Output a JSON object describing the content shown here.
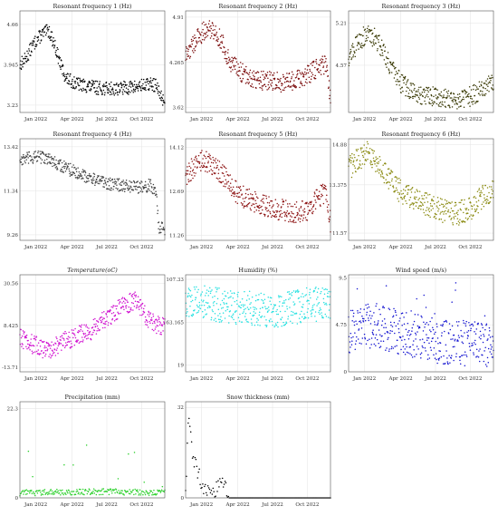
{
  "chart_data": [
    {
      "id": "rf1",
      "type": "scatter",
      "title": "Resonant frequency 1 (Hz)",
      "color": "#000000",
      "y_ticks": [
        "3.23",
        "3.945",
        "4.66"
      ],
      "ylim": [
        3.1,
        4.9
      ],
      "x_ticks": [
        "Jan 2022",
        "Apr 2022",
        "Jul 2022",
        "Oct 2022"
      ],
      "series": {
        "x": [
          0,
          0.04,
          0.08,
          0.12,
          0.16,
          0.2,
          0.24,
          0.28,
          0.32,
          0.4,
          0.5,
          0.6,
          0.7,
          0.8,
          0.9,
          0.94,
          0.97,
          1.0
        ],
        "y": [
          3.95,
          4.05,
          4.25,
          4.4,
          4.5,
          4.55,
          4.3,
          3.95,
          3.7,
          3.6,
          3.55,
          3.52,
          3.53,
          3.55,
          3.6,
          3.58,
          3.4,
          3.3
        ],
        "spread": 0.12
      }
    },
    {
      "id": "rf2",
      "type": "scatter",
      "title": "Resonant frequency 2 (Hz)",
      "color": "#7a0a0a",
      "y_ticks": [
        "3.62",
        "4.265",
        "4.91"
      ],
      "ylim": [
        3.55,
        5.0
      ],
      "x_ticks": [
        "Jan 2022",
        "Apr 2022",
        "Jul 2022",
        "Oct 2022"
      ],
      "series": {
        "x": [
          0,
          0.06,
          0.12,
          0.18,
          0.24,
          0.3,
          0.36,
          0.45,
          0.55,
          0.65,
          0.75,
          0.85,
          0.92,
          0.97,
          1.0
        ],
        "y": [
          4.35,
          4.55,
          4.7,
          4.75,
          4.6,
          4.3,
          4.15,
          4.05,
          4.0,
          3.98,
          4.0,
          4.1,
          4.2,
          4.25,
          3.75
        ],
        "spread": 0.14
      }
    },
    {
      "id": "rf3",
      "type": "scatter",
      "title": "Resonant frequency 3 (Hz)",
      "color": "#3a3a05",
      "y_ticks": [
        "4.57",
        "5.21"
      ],
      "ylim": [
        3.85,
        5.4
      ],
      "x_ticks": [
        "Jan 2022",
        "Apr 2022",
        "Jul 2022",
        "Oct 2022"
      ],
      "series": {
        "x": [
          0,
          0.06,
          0.12,
          0.18,
          0.24,
          0.3,
          0.36,
          0.45,
          0.55,
          0.65,
          0.75,
          0.85,
          0.92,
          1.0
        ],
        "y": [
          4.7,
          4.9,
          5.05,
          5.0,
          4.8,
          4.5,
          4.3,
          4.15,
          4.1,
          4.08,
          4.05,
          4.1,
          4.2,
          4.3
        ],
        "spread": 0.15
      }
    },
    {
      "id": "rf4",
      "type": "scatter",
      "title": "Resonant frequency 4 (Hz)",
      "color": "#444444",
      "y_ticks": [
        "9.26",
        "11.34",
        "13.42"
      ],
      "ylim": [
        9.0,
        13.8
      ],
      "x_ticks": [
        "Jan 2022",
        "Apr 2022",
        "Jul 2022",
        "Oct 2022"
      ],
      "series": {
        "x": [
          0,
          0.08,
          0.16,
          0.24,
          0.32,
          0.4,
          0.5,
          0.6,
          0.7,
          0.8,
          0.9,
          0.94,
          0.96,
          1.0
        ],
        "y": [
          12.8,
          12.9,
          12.95,
          12.7,
          12.4,
          12.2,
          11.9,
          11.7,
          11.6,
          11.5,
          11.6,
          11.2,
          9.6,
          9.5
        ],
        "spread": 0.3
      }
    },
    {
      "id": "rf5",
      "type": "scatter",
      "title": "Resonant frequency 5 (Hz)",
      "color": "#8b0f0f",
      "y_ticks": [
        "11.26",
        "12.69",
        "14.12"
      ],
      "ylim": [
        11.1,
        14.4
      ],
      "x_ticks": [
        "Jan 2022",
        "Apr 2022",
        "Jul 2022",
        "Oct 2022"
      ],
      "series": {
        "x": [
          0,
          0.06,
          0.12,
          0.2,
          0.28,
          0.36,
          0.45,
          0.55,
          0.65,
          0.75,
          0.85,
          0.92,
          0.97,
          1.0
        ],
        "y": [
          13.2,
          13.5,
          13.7,
          13.5,
          13.1,
          12.6,
          12.4,
          12.2,
          12.1,
          12.0,
          12.1,
          12.5,
          12.7,
          11.7
        ],
        "spread": 0.35
      }
    },
    {
      "id": "rf6",
      "type": "scatter",
      "title": "Resonant frequency 6 (Hz)",
      "color": "#8a8a10",
      "y_ticks": [
        "11.57",
        "13.375",
        "14.88"
      ],
      "ylim": [
        11.3,
        15.1
      ],
      "x_ticks": [
        "Jan 2022",
        "Apr 2022",
        "Jul 2022",
        "Oct 2022"
      ],
      "series": {
        "x": [
          0,
          0.06,
          0.12,
          0.2,
          0.28,
          0.36,
          0.45,
          0.55,
          0.65,
          0.75,
          0.85,
          0.92,
          1.0
        ],
        "y": [
          14.0,
          14.3,
          14.6,
          14.2,
          13.6,
          13.1,
          12.9,
          12.6,
          12.4,
          12.3,
          12.5,
          12.9,
          13.1
        ],
        "spread": 0.45
      }
    },
    {
      "id": "temp",
      "type": "scatter",
      "title": "Temperature(oC)",
      "color": "#d010d0",
      "y_ticks": [
        "-13.71",
        "8.425",
        "30.56"
      ],
      "ylim": [
        -16,
        35
      ],
      "x_ticks": [
        "Jan 2022",
        "Apr 2022",
        "Jul 2022",
        "Oct 2022"
      ],
      "series": {
        "x": [
          0,
          0.1,
          0.2,
          0.3,
          0.4,
          0.5,
          0.6,
          0.7,
          0.8,
          0.85,
          0.9,
          1.0
        ],
        "y": [
          2,
          -2,
          -5,
          0,
          3,
          6,
          12,
          18,
          22,
          16,
          10,
          8
        ],
        "spread": 5
      }
    },
    {
      "id": "hum",
      "type": "scatter",
      "title": "Humidity (%)",
      "color": "#22e0e0",
      "y_ticks": [
        "19",
        "63.165",
        "107.33"
      ],
      "ylim": [
        12,
        112
      ],
      "x_ticks": [
        "Jan 2022",
        "Apr 2022",
        "Jul 2022",
        "Oct 2022"
      ],
      "series": {
        "x": [
          0,
          0.2,
          0.4,
          0.6,
          0.8,
          1.0
        ],
        "y": [
          85,
          82,
          78,
          75,
          80,
          84
        ],
        "spread": 18
      }
    },
    {
      "id": "wind",
      "type": "scatter",
      "title": "Wind speed (m/s)",
      "color": "#1212d0",
      "y_ticks": [
        "0",
        "4.75",
        "9.5"
      ],
      "ylim": [
        0,
        9.8
      ],
      "x_ticks": [
        "Jan 2022",
        "Apr 2022",
        "Jul 2022",
        "Oct 2022"
      ],
      "series": {
        "x": [
          0,
          0.2,
          0.4,
          0.6,
          0.8,
          1.0
        ],
        "y": [
          3.5,
          4.0,
          3.2,
          2.5,
          2.2,
          2.0
        ],
        "spread": 2.3
      }
    },
    {
      "id": "prec",
      "type": "scatter",
      "title": "Precipitation (mm)",
      "color": "#2ad02a",
      "y_ticks": [
        "0",
        "22.3"
      ],
      "ylim": [
        0,
        24
      ],
      "x_ticks": [
        "Jan 2022",
        "Apr 2022",
        "Jul 2022",
        "Oct 2022"
      ],
      "series": {
        "x": [
          0,
          0.5,
          1.0
        ],
        "y": [
          0.5,
          0.8,
          0.6
        ],
        "spread": 1.5
      }
    },
    {
      "id": "snow",
      "type": "scatter",
      "title": "Snow thickness (mm)",
      "color": "#000000",
      "y_ticks": [
        "0",
        "32"
      ],
      "ylim": [
        0,
        34
      ],
      "x_ticks": [
        "Jan 2022",
        "Apr 2022",
        "Jul 2022",
        "Oct 2022"
      ],
      "series": {
        "x": [
          0,
          0.02,
          0.05,
          0.09,
          0.13,
          0.16,
          0.2,
          0.24,
          0.28,
          0.3,
          1.0
        ],
        "y": [
          0,
          30,
          14,
          8,
          2,
          5,
          2,
          7,
          3,
          0,
          0
        ],
        "spread": 0
      }
    }
  ]
}
